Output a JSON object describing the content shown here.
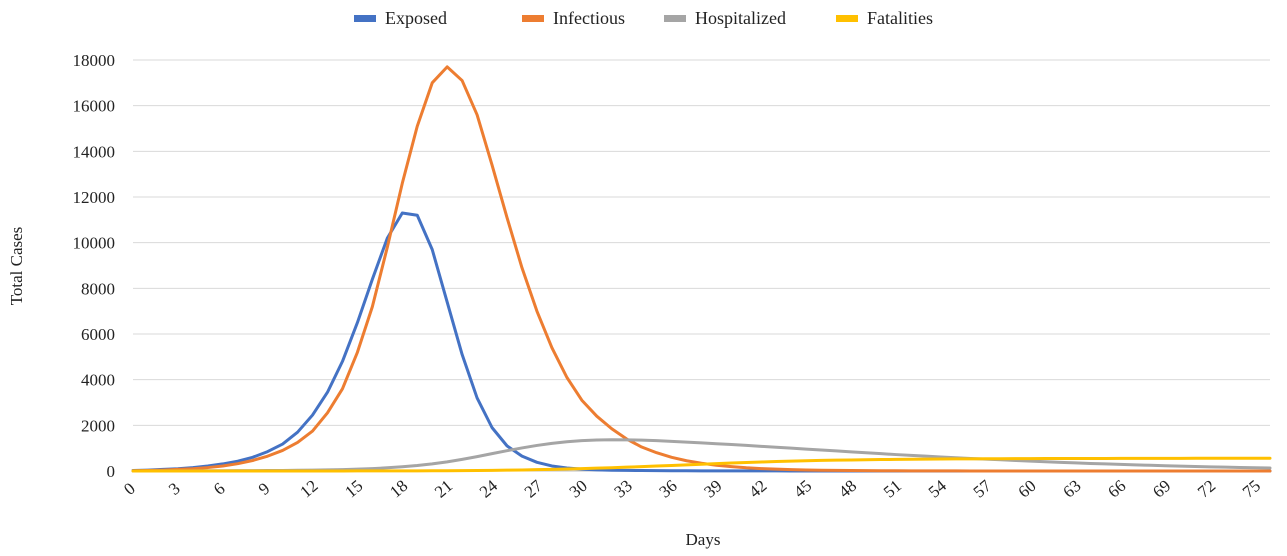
{
  "chart_data": {
    "type": "line",
    "title": "",
    "xlabel": "Days",
    "ylabel": "Total Cases",
    "ylim": [
      0,
      18000
    ],
    "xlim": [
      0,
      76
    ],
    "yticks": [
      "0",
      "2000",
      "4000",
      "6000",
      "8000",
      "10000",
      "12000",
      "14000",
      "16000",
      "18000"
    ],
    "xticks": [
      "0",
      "3",
      "6",
      "9",
      "12",
      "15",
      "18",
      "21",
      "24",
      "27",
      "30",
      "33",
      "36",
      "39",
      "42",
      "45",
      "48",
      "51",
      "54",
      "57",
      "60",
      "63",
      "66",
      "69",
      "72",
      "75"
    ],
    "grid": "horizontal",
    "legend_position": "top",
    "x": [
      0,
      1,
      2,
      3,
      4,
      5,
      6,
      7,
      8,
      9,
      10,
      11,
      12,
      13,
      14,
      15,
      16,
      17,
      18,
      19,
      20,
      21,
      22,
      23,
      24,
      25,
      26,
      27,
      28,
      29,
      30,
      31,
      32,
      33,
      34,
      35,
      36,
      37,
      38,
      39,
      40,
      41,
      42,
      43,
      44,
      45,
      46,
      47,
      48,
      49,
      50,
      51,
      52,
      53,
      54,
      55,
      56,
      57,
      58,
      59,
      60,
      61,
      62,
      63,
      64,
      65,
      66,
      67,
      68,
      69,
      70,
      71,
      72,
      73,
      74,
      75,
      76
    ],
    "series": [
      {
        "name": "Exposed",
        "color": "#4472C4",
        "values": [
          20,
          40,
          70,
          100,
          150,
          220,
          310,
          430,
          600,
          850,
          1180,
          1700,
          2450,
          3450,
          4800,
          6500,
          8400,
          10200,
          11300,
          11200,
          9700,
          7400,
          5100,
          3200,
          1900,
          1100,
          650,
          380,
          220,
          130,
          80,
          50,
          35,
          25,
          20,
          15,
          12,
          10,
          8,
          6,
          5,
          4,
          3,
          3,
          2,
          2,
          2,
          2,
          1,
          1,
          1,
          1,
          1,
          1,
          1,
          1,
          1,
          1,
          1,
          1,
          1,
          1,
          1,
          1,
          1,
          1,
          1,
          1,
          1,
          1,
          1,
          1,
          1,
          1,
          1,
          1,
          1
        ]
      },
      {
        "name": "Infectious",
        "color": "#ED7D31",
        "values": [
          10,
          20,
          40,
          70,
          100,
          150,
          220,
          320,
          460,
          650,
          900,
          1250,
          1750,
          2550,
          3600,
          5200,
          7200,
          9800,
          12600,
          15100,
          17000,
          17700,
          17100,
          15600,
          13400,
          11100,
          8900,
          7000,
          5400,
          4100,
          3100,
          2400,
          1850,
          1400,
          1050,
          800,
          600,
          450,
          340,
          250,
          190,
          140,
          105,
          80,
          60,
          45,
          34,
          26,
          20,
          15,
          12,
          9,
          7,
          5,
          4,
          3,
          2,
          2,
          1,
          1,
          1,
          1,
          1,
          1,
          1,
          1,
          1,
          1,
          1,
          1,
          1,
          1,
          1,
          1,
          1,
          1,
          1
        ]
      },
      {
        "name": "Hospitalized",
        "color": "#A5A5A5",
        "values": [
          0,
          2,
          4,
          6,
          8,
          10,
          12,
          14,
          17,
          20,
          24,
          30,
          38,
          48,
          60,
          80,
          105,
          140,
          185,
          240,
          310,
          400,
          510,
          630,
          760,
          890,
          1010,
          1120,
          1210,
          1280,
          1330,
          1360,
          1370,
          1365,
          1350,
          1330,
          1300,
          1265,
          1230,
          1195,
          1160,
          1120,
          1080,
          1040,
          1000,
          960,
          920,
          880,
          840,
          800,
          760,
          720,
          685,
          650,
          615,
          580,
          550,
          520,
          490,
          460,
          430,
          405,
          380,
          355,
          330,
          310,
          290,
          270,
          250,
          232,
          215,
          198,
          182,
          168,
          155,
          142,
          130
        ]
      },
      {
        "name": "Fatalities",
        "color": "#FFC000",
        "values": [
          0,
          0,
          0,
          0,
          0,
          0,
          0,
          0,
          0,
          0,
          1,
          1,
          1,
          2,
          2,
          3,
          4,
          5,
          6,
          8,
          10,
          13,
          17,
          22,
          28,
          36,
          46,
          58,
          72,
          88,
          105,
          124,
          145,
          168,
          192,
          217,
          243,
          270,
          297,
          324,
          350,
          374,
          396,
          416,
          434,
          450,
          463,
          474,
          484,
          493,
          501,
          508,
          514,
          520,
          525,
          529,
          533,
          536,
          539,
          541,
          543,
          545,
          547,
          548,
          549,
          550,
          551,
          552,
          553,
          554,
          555,
          556,
          557,
          558,
          559,
          560,
          561
        ]
      }
    ]
  }
}
